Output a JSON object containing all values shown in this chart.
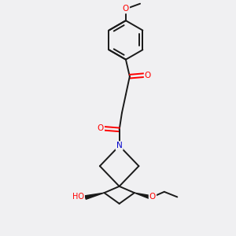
{
  "bg_color": "#f0f0f2",
  "bond_color": "#1a1a1a",
  "atom_colors": {
    "O": "#ff0000",
    "N": "#0000cc",
    "C": "#1a1a1a"
  },
  "line_width": 1.4,
  "figsize": [
    3.0,
    3.0
  ],
  "dpi": 100,
  "xlim": [
    -2.5,
    2.5
  ],
  "ylim": [
    -4.5,
    4.5
  ]
}
